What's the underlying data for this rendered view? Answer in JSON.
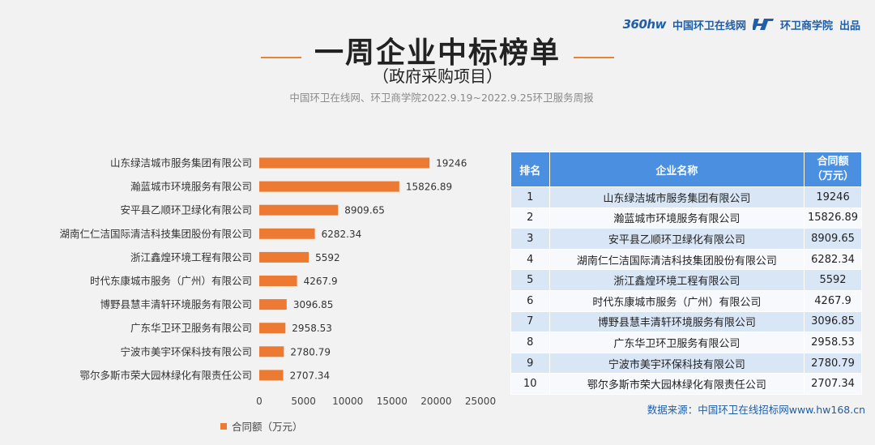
{
  "brand": {
    "logo360": "360hw",
    "site_name": "中国环卫在线网",
    "academy": "环卫商学院",
    "produced_by": "出品"
  },
  "header": {
    "title": "一周企业中标榜单",
    "subtitle": "（政府采购项目）",
    "caption": "中国环卫在线网、环卫商学院2022.9.19~2022.9.25环卫服务周报"
  },
  "chart_data": {
    "type": "bar",
    "orientation": "horizontal",
    "categories": [
      "山东绿洁城市服务集团有限公司",
      "瀚蓝城市环境服务有限公司",
      "安平县乙顺环卫绿化有限公司",
      "湖南仁仁洁国际清洁科技集团股份有限公司",
      "浙江鑫煌环境工程有限公司",
      "时代东康城市服务（广州）有限公司",
      "博野县慧丰清轩环境服务有限公司",
      "广东华卫环卫服务有限公司",
      "宁波市美宇环保科技有限公司",
      "鄂尔多斯市荣大园林绿化有限责任公司"
    ],
    "values": [
      19246,
      15826.89,
      8909.65,
      6282.34,
      5592,
      4267.9,
      3096.85,
      2958.53,
      2780.79,
      2707.34
    ],
    "value_labels": [
      "19246",
      "15826.89",
      "8909.65",
      "6282.34",
      "5592",
      "4267.9",
      "3096.85",
      "2958.53",
      "2780.79",
      "2707.34"
    ],
    "xlim": [
      0,
      25000
    ],
    "xticks": [
      0,
      5000,
      10000,
      15000,
      20000,
      25000
    ],
    "series_name": "合同额（万元）",
    "legend_position": "bottom-left",
    "color": "#ec7a33"
  },
  "table": {
    "headers": [
      "排名",
      "企业名称",
      "合同额（万元）"
    ],
    "rows": [
      {
        "rank": "1",
        "name": "山东绿洁城市服务集团有限公司",
        "amount": "19246"
      },
      {
        "rank": "2",
        "name": "瀚蓝城市环境服务有限公司",
        "amount": "15826.89"
      },
      {
        "rank": "3",
        "name": "安平县乙顺环卫绿化有限公司",
        "amount": "8909.65"
      },
      {
        "rank": "4",
        "name": "湖南仁仁洁国际清洁科技集团股份有限公司",
        "amount": "6282.34"
      },
      {
        "rank": "5",
        "name": "浙江鑫煌环境工程有限公司",
        "amount": "5592"
      },
      {
        "rank": "6",
        "name": "时代东康城市服务（广州）有限公司",
        "amount": "4267.9"
      },
      {
        "rank": "7",
        "name": "博野县慧丰清轩环境服务有限公司",
        "amount": "3096.85"
      },
      {
        "rank": "8",
        "name": "广东华卫环卫服务有限公司",
        "amount": "2958.53"
      },
      {
        "rank": "9",
        "name": "宁波市美宇环保科技有限公司",
        "amount": "2780.79"
      },
      {
        "rank": "10",
        "name": "鄂尔多斯市荣大园林绿化有限责任公司",
        "amount": "2707.34"
      }
    ]
  },
  "source": "数据来源：中国环卫在线招标网www.hw168.cn"
}
